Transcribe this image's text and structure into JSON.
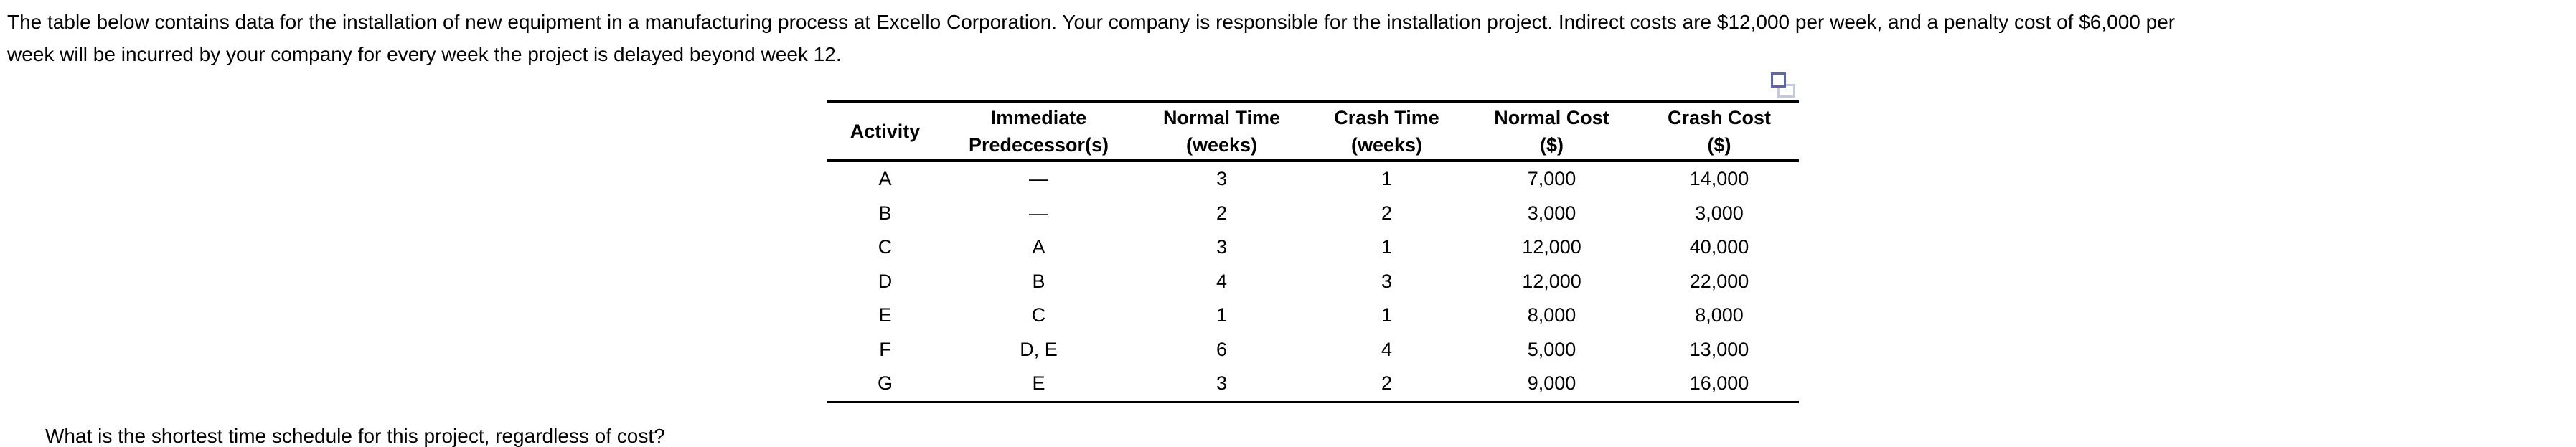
{
  "colors": {
    "text": "#000000",
    "rule": "#000000",
    "icon_dark": "#5a67a8",
    "icon_light": "#c3c9e5",
    "background": "#ffffff"
  },
  "problem": {
    "statement_lines": [
      "The table below contains data for the installation of new equipment in a manufacturing process at Excello Corporation. Your company is responsible for the installation project. Indirect costs are $12,000 per week, and a penalty cost of $6,000 per",
      "week will be incurred by your company for every week the project is delayed beyond week 12."
    ],
    "clipped_question": "What is the shortest time schedule for this project, regardless of cost?"
  },
  "table": {
    "headers": [
      {
        "lines": [
          "Activity"
        ]
      },
      {
        "lines": [
          "Immediate",
          "Predecessor(s)"
        ]
      },
      {
        "lines": [
          "Normal Time",
          "(weeks)"
        ]
      },
      {
        "lines": [
          "Crash Time",
          "(weeks)"
        ]
      },
      {
        "lines": [
          "Normal Cost",
          "($)"
        ]
      },
      {
        "lines": [
          "Crash Cost",
          "($)"
        ]
      }
    ],
    "rows": [
      [
        "A",
        "—",
        "3",
        "1",
        "7,000",
        "14,000"
      ],
      [
        "B",
        "—",
        "2",
        "2",
        "3,000",
        "3,000"
      ],
      [
        "C",
        "A",
        "3",
        "1",
        "12,000",
        "40,000"
      ],
      [
        "D",
        "B",
        "4",
        "3",
        "12,000",
        "22,000"
      ],
      [
        "E",
        "C",
        "1",
        "1",
        "8,000",
        "8,000"
      ],
      [
        "F",
        "D, E",
        "6",
        "4",
        "5,000",
        "13,000"
      ],
      [
        "G",
        "E",
        "3",
        "2",
        "9,000",
        "16,000"
      ]
    ]
  }
}
